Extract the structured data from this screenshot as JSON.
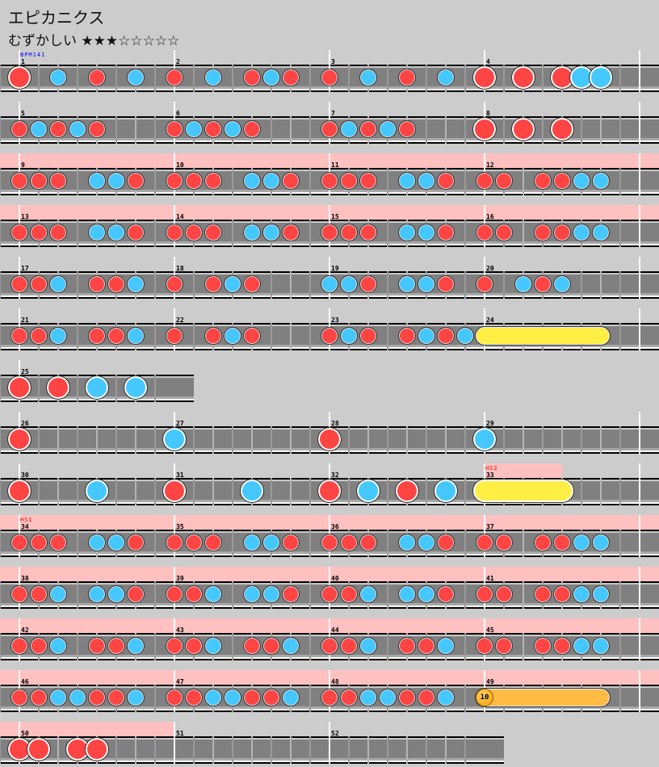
{
  "song": {
    "title": "エピカニクス",
    "difficulty": "むずかしい",
    "stars": "★★★☆☆☆☆☆",
    "star_level": 3,
    "star_max": 8
  },
  "colors": {
    "background": "#cccccc",
    "don": "#ff4444",
    "ka": "#44c8ff",
    "roll": "#ffee44",
    "balloon": "#ffbb44",
    "gogo": "#ffc0c0",
    "bpm_label": "#0000ff",
    "hs_label": "#ff0000"
  },
  "legend": {
    "d": "don",
    "k": "ka",
    "D": "big-don",
    "K": "big-ka",
    "0": "rest"
  },
  "rows": [
    [
      1,
      2,
      3,
      4
    ],
    [
      5,
      6,
      7,
      8
    ],
    [
      9,
      10,
      11,
      12
    ],
    [
      13,
      14,
      15,
      16
    ],
    [
      17,
      18,
      19,
      20
    ],
    [
      21,
      22,
      23,
      24
    ],
    [
      25
    ],
    [
      26,
      27,
      28,
      29
    ],
    [
      30,
      31,
      32,
      33
    ],
    [
      34,
      35,
      36,
      37
    ],
    [
      38,
      39,
      40,
      41
    ],
    [
      42,
      43,
      44,
      45
    ],
    [
      46,
      47,
      48,
      49
    ],
    [
      50,
      51,
      52
    ]
  ],
  "measures": {
    "1": "D0k0d0k0",
    "2": "d0k0dkd0",
    "3": "d0k0d0k0",
    "4": "D0D0DKK0",
    "5": "dkdkd000",
    "6": "dkdkd000",
    "7": "dkdkd000",
    "8": "D0D0D000",
    "9": "ddd0kkd0",
    "10": "ddd0kkd0",
    "11": "ddd0kkd0",
    "12": "dd0ddkk0",
    "13": "ddd0kkd0",
    "14": "ddd0kkd0",
    "15": "ddd0kkd0",
    "16": "dd0ddkk0",
    "17": "ddk0ddk0",
    "18": "d0dkd000",
    "19": "kkd0kkd0",
    "20": "d0kdk000",
    "21": "ddk0ddk0",
    "22": "d0dkd000",
    "23": "dkd0dkdk",
    "24": "00000000",
    "25": "D0D0K0K0",
    "26": "D0000000",
    "27": "K0000000",
    "28": "D0000000",
    "29": "K0000000",
    "30": "D000K000",
    "31": "D000K000",
    "32": "D0K0D0K0",
    "33": "00000000",
    "34": "ddd0kkd0",
    "35": "ddd0kkd0",
    "36": "ddd0kkd0",
    "37": "dd0ddkk0",
    "38": "ddk0kkd0",
    "39": "ddk0kkd0",
    "40": "ddk0kkd0",
    "41": "dd0ddkk0",
    "42": "ddk0ddk0",
    "43": "ddk0ddk0",
    "44": "ddk0ddk0",
    "45": "dd0ddkk0",
    "46": "ddkkddk0",
    "47": "ddkkddk0",
    "48": "ddkkddk0",
    "49": "00000000",
    "50": "DD0DD000",
    "51": "00000000",
    "52": "00000000"
  },
  "specials": [
    {
      "measure": 24,
      "type": "roll",
      "start_beat": 0,
      "end_beat": 3
    },
    {
      "measure": 33,
      "type": "big-roll",
      "start_beat": 0,
      "end_beat": 2
    },
    {
      "measure": 49,
      "type": "balloon",
      "start_beat": 0,
      "end_beat": 3,
      "hits": "10"
    }
  ],
  "labels": [
    {
      "measure": 1,
      "text": "BPM141",
      "kind": "bpm"
    },
    {
      "measure": 33,
      "text": "HS2",
      "kind": "hs"
    },
    {
      "measure": 34,
      "text": "HS1",
      "kind": "hs"
    }
  ],
  "gogo": {
    "full_measures": [
      9,
      10,
      11,
      12,
      13,
      14,
      15,
      16,
      34,
      35,
      36,
      37,
      38,
      39,
      40,
      41,
      42,
      43,
      44,
      45,
      46,
      47,
      48,
      49,
      50
    ],
    "partial": [
      {
        "measure": 33,
        "fraction": 0.5
      }
    ]
  }
}
